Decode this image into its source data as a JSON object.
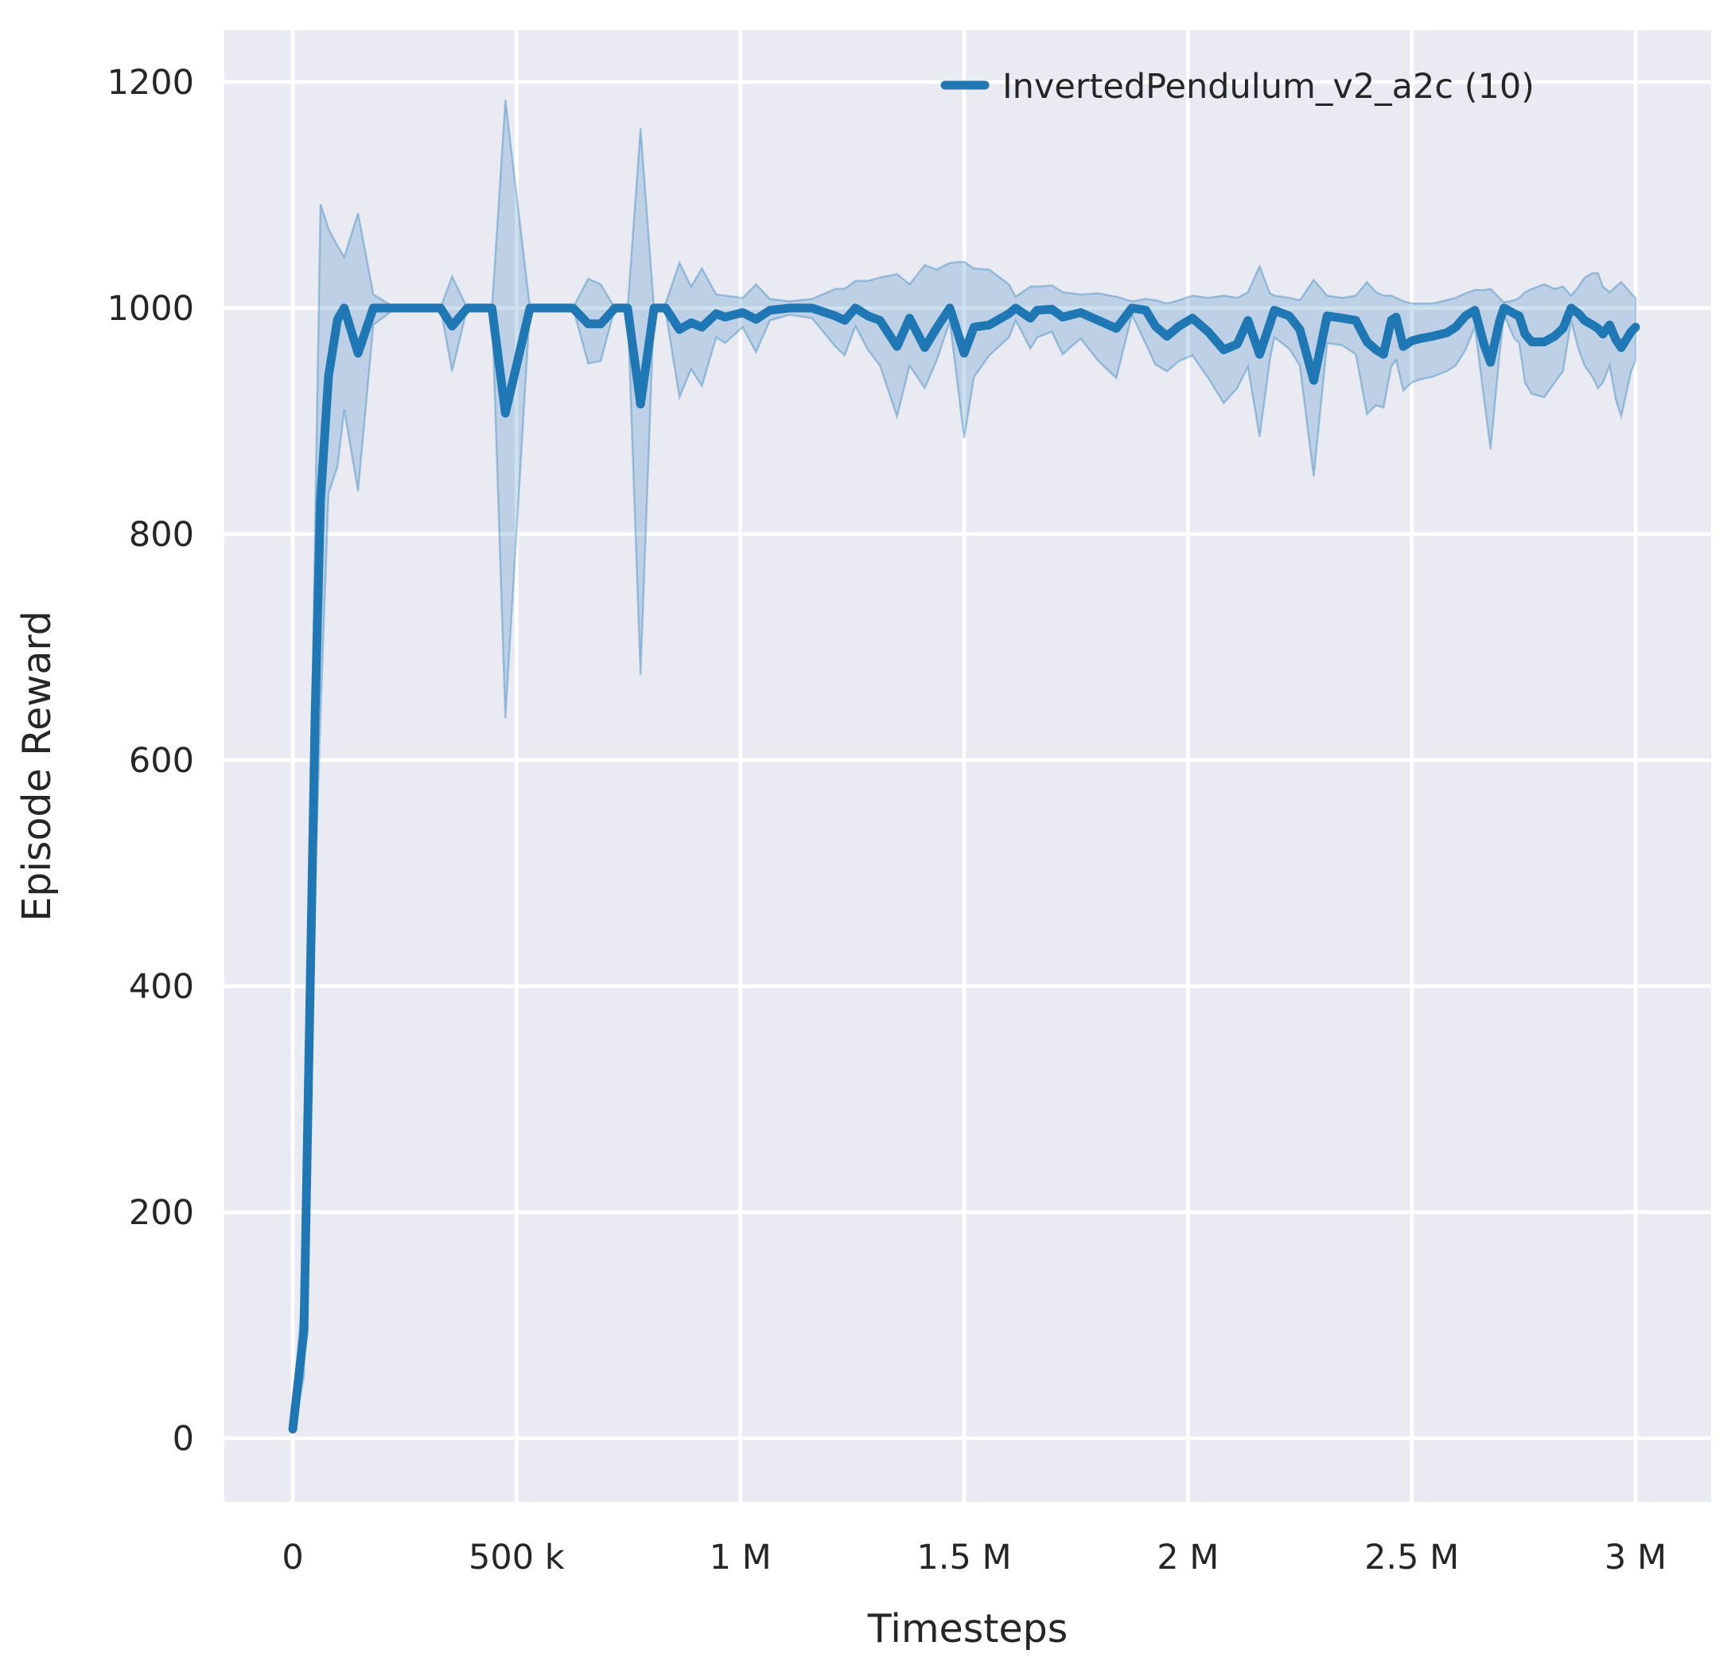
{
  "figure": {
    "colors": {
      "figure_background": "#ffffff",
      "axes_background": "#eaeaf2",
      "gridline": "#ffffff",
      "line": "#1f77b4",
      "band_fill": "#1f77b4",
      "band_fill_opacity": 0.22,
      "band_edge_opacity": 0.35,
      "text": "#262626"
    }
  },
  "chart_data": {
    "type": "line",
    "title": "",
    "xlabel": "Timesteps",
    "ylabel": "Episode Reward",
    "legend_label": "InvertedPendulum_v2_a2c (10)",
    "legend_position": "upper right",
    "grid": true,
    "x_unit": "timesteps (values below in thousands)",
    "xlim_thousands": [
      -153,
      3169
    ],
    "ylim": [
      -56,
      1246
    ],
    "x_ticks_thousands": [
      0,
      500,
      1000,
      1500,
      2000,
      2500,
      3000
    ],
    "x_tick_labels": [
      "0",
      "500 k",
      "1 M",
      "1.5 M",
      "2 M",
      "2.5 M",
      "3 M"
    ],
    "y_ticks": [
      0,
      200,
      400,
      600,
      800,
      1000,
      1200
    ],
    "y_tick_labels": [
      "0",
      "200",
      "400",
      "600",
      "800",
      "1000",
      "1200"
    ],
    "series": [
      {
        "name": "InvertedPendulum_v2_a2c (10)",
        "n_runs": 10,
        "x_thousands": [
          0,
          25,
          50,
          62,
          80,
          100,
          115,
          146,
          180,
          230,
          285,
          330,
          356,
          390,
          445,
          475,
          530,
          575,
          626,
          660,
          688,
          720,
          748,
          777,
          807,
          833,
          864,
          890,
          914,
          946,
          966,
          1005,
          1035,
          1066,
          1110,
          1160,
          1212,
          1233,
          1257,
          1285,
          1312,
          1350,
          1378,
          1412,
          1438,
          1468,
          1500,
          1522,
          1556,
          1600,
          1615,
          1648,
          1663,
          1696,
          1720,
          1760,
          1800,
          1840,
          1875,
          1906,
          1927,
          1953,
          1980,
          2010,
          2045,
          2080,
          2110,
          2134,
          2160,
          2183,
          2193,
          2226,
          2250,
          2281,
          2311,
          2345,
          2375,
          2400,
          2420,
          2437,
          2454,
          2465,
          2481,
          2500,
          2520,
          2546,
          2578,
          2598,
          2620,
          2641,
          2662,
          2676,
          2696,
          2706,
          2729,
          2740,
          2753,
          2768,
          2796,
          2819,
          2838,
          2856,
          2873,
          2886,
          2904,
          2916,
          2927,
          2942,
          2956,
          2968,
          2990,
          3000
        ],
        "mean": [
          8,
          95,
          640,
          830,
          940,
          990,
          1000,
          960,
          1000,
          1000,
          1000,
          1000,
          984,
          1000,
          1000,
          907,
          1000,
          1000,
          1000,
          986,
          986,
          1000,
          1000,
          915,
          1000,
          1000,
          981,
          987,
          983,
          995,
          992,
          996,
          990,
          998,
          1000,
          1000,
          993,
          989,
          1000,
          993,
          989,
          966,
          991,
          965,
          982,
          1000,
          960,
          983,
          985,
          995,
          1000,
          991,
          998,
          999,
          992,
          996,
          989,
          982,
          1000,
          998,
          984,
          975,
          984,
          991,
          979,
          963,
          968,
          989,
          959,
          986,
          998,
          993,
          981,
          936,
          993,
          991,
          989,
          970,
          963,
          959,
          989,
          992,
          966,
          971,
          973,
          975,
          978,
          983,
          993,
          998,
          967,
          952,
          988,
          1000,
          995,
          993,
          977,
          970,
          970,
          975,
          982,
          1000,
          995,
          989,
          985,
          982,
          977,
          985,
          972,
          965,
          979,
          983
        ],
        "band_low": [
          4,
          55,
          490,
          640,
          836,
          860,
          910,
          838,
          985,
          1000,
          1000,
          1000,
          944,
          1000,
          1000,
          637,
          1000,
          1000,
          1000,
          951,
          953,
          1000,
          1000,
          675,
          1000,
          997,
          921,
          946,
          931,
          974,
          969,
          983,
          961,
          989,
          994,
          991,
          966,
          958,
          984,
          963,
          949,
          904,
          949,
          929,
          953,
          988,
          885,
          939,
          958,
          974,
          989,
          964,
          974,
          979,
          959,
          973,
          953,
          938,
          994,
          968,
          950,
          944,
          953,
          958,
          938,
          916,
          929,
          948,
          886,
          954,
          974,
          964,
          949,
          851,
          969,
          967,
          959,
          906,
          914,
          912,
          948,
          954,
          927,
          934,
          937,
          939,
          944,
          949,
          963,
          983,
          918,
          875,
          958,
          994,
          973,
          969,
          934,
          924,
          921,
          934,
          944,
          989,
          963,
          949,
          939,
          929,
          934,
          949,
          919,
          904,
          944,
          953
        ],
        "band_high": [
          14,
          150,
          810,
          1092,
          1070,
          1055,
          1045,
          1084,
          1012,
          1000,
          1000,
          1000,
          1028,
          1000,
          1000,
          1184,
          1000,
          1000,
          1000,
          1026,
          1021,
          1000,
          1000,
          1159,
          1000,
          1004,
          1040,
          1019,
          1035,
          1012,
          1011,
          1009,
          1021,
          1008,
          1006,
          1008,
          1017,
          1017,
          1024,
          1024,
          1027,
          1030,
          1021,
          1038,
          1034,
          1040,
          1041,
          1035,
          1034,
          1021,
          1010,
          1019,
          1019,
          1020,
          1014,
          1012,
          1013,
          1010,
          1006,
          1008,
          1007,
          1004,
          1007,
          1011,
          1009,
          1011,
          1009,
          1014,
          1037,
          1013,
          1011,
          1009,
          1007,
          1025,
          1011,
          1009,
          1011,
          1023,
          1014,
          1011,
          1011,
          1009,
          1006,
          1004,
          1004,
          1004,
          1007,
          1009,
          1013,
          1016,
          1016,
          1017,
          1009,
          1005,
          1007,
          1009,
          1014,
          1017,
          1021,
          1017,
          1019,
          1011,
          1019,
          1027,
          1031,
          1031,
          1019,
          1014,
          1019,
          1023,
          1013,
          1009
        ]
      }
    ]
  }
}
